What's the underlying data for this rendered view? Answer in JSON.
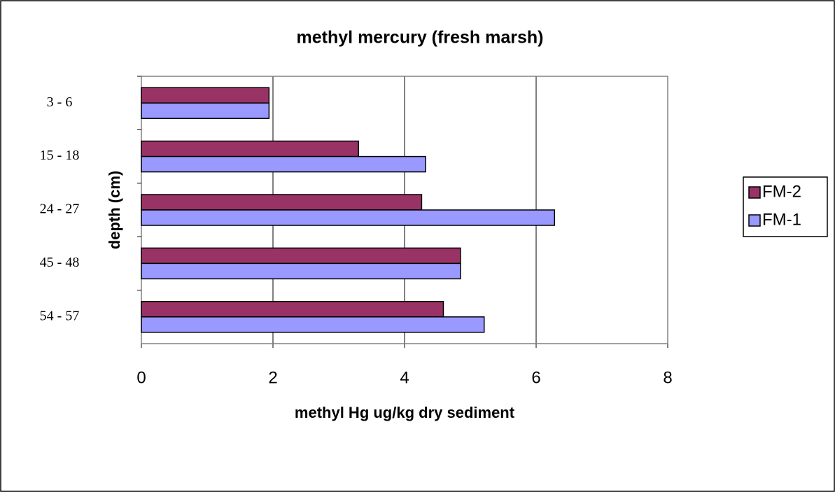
{
  "chart_data": {
    "type": "hbar",
    "title": "methyl mercury (fresh marsh)",
    "x_label": "methyl Hg ug/kg dry sediment",
    "y_label": "depth (cm)",
    "categories": [
      "3 - 6",
      "15 - 18",
      "24 - 27",
      "45 - 48",
      "54 - 57"
    ],
    "series": [
      {
        "name": "FM-2",
        "color": "#993366",
        "values": [
          1.94,
          3.3,
          4.26,
          4.85,
          4.59
        ]
      },
      {
        "name": "FM-1",
        "color": "#9999ff",
        "values": [
          1.94,
          4.32,
          6.28,
          4.85,
          5.21
        ]
      }
    ],
    "xlim": [
      0,
      8
    ],
    "xticks": [
      0,
      2,
      4,
      6,
      8
    ],
    "grid": true,
    "legend": "right"
  }
}
